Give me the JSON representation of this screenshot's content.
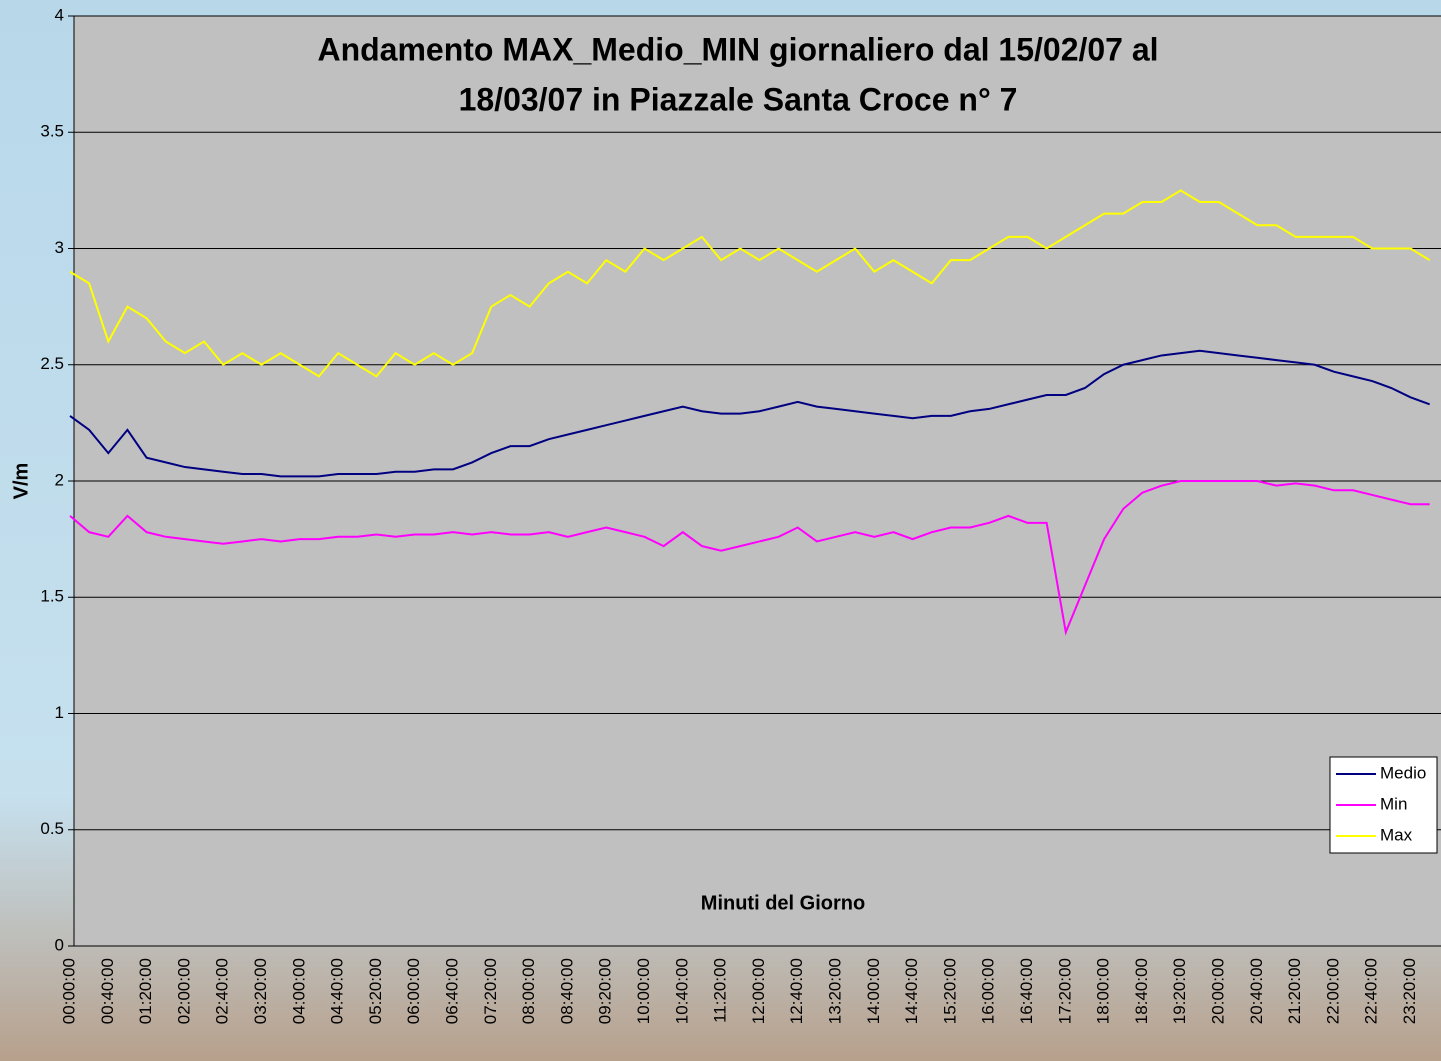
{
  "chart_data": {
    "type": "line",
    "title": [
      "Andamento MAX_Medio_MIN giornaliero dal 15/02/07 al",
      "18/03/07 in Piazzale Santa Croce n° 7"
    ],
    "x_label": "Minuti del Giorno",
    "y_label": "V/m",
    "categories": [
      "00:00:00",
      null,
      "00:40:00",
      null,
      "01:20:00",
      null,
      "02:00:00",
      null,
      "02:40:00",
      null,
      "03:20:00",
      null,
      "04:00:00",
      null,
      "04:40:00",
      null,
      "05:20:00",
      null,
      "06:00:00",
      null,
      "06:40:00",
      null,
      "07:20:00",
      null,
      "08:00:00",
      null,
      "08:40:00",
      null,
      "09:20:00",
      null,
      "10:00:00",
      null,
      "10:40:00",
      null,
      "11:20:00",
      null,
      "12:00:00",
      null,
      "12:40:00",
      null,
      "13:20:00",
      null,
      "14:00:00",
      null,
      "14:40:00",
      null,
      "15:20:00",
      null,
      "16:00:00",
      null,
      "16:40:00",
      null,
      "17:20:00",
      null,
      "18:00:00",
      null,
      "18:40:00",
      null,
      "19:20:00",
      null,
      "20:00:00",
      null,
      "20:40:00",
      null,
      "21:20:00",
      null,
      "22:00:00",
      null,
      "22:40:00",
      null,
      "23:20:00",
      null
    ],
    "series": [
      {
        "name": "Medio",
        "color": "#000080",
        "values": [
          2.28,
          2.22,
          2.12,
          2.22,
          2.1,
          2.08,
          2.06,
          2.05,
          2.04,
          2.03,
          2.03,
          2.02,
          2.02,
          2.02,
          2.03,
          2.03,
          2.03,
          2.04,
          2.04,
          2.05,
          2.05,
          2.08,
          2.12,
          2.15,
          2.15,
          2.18,
          2.2,
          2.22,
          2.24,
          2.26,
          2.28,
          2.3,
          2.32,
          2.3,
          2.29,
          2.29,
          2.3,
          2.32,
          2.34,
          2.32,
          2.31,
          2.3,
          2.29,
          2.28,
          2.27,
          2.28,
          2.28,
          2.3,
          2.31,
          2.33,
          2.35,
          2.37,
          2.37,
          2.4,
          2.46,
          2.5,
          2.52,
          2.54,
          2.55,
          2.56,
          2.55,
          2.54,
          2.53,
          2.52,
          2.51,
          2.5,
          2.47,
          2.45,
          2.43,
          2.4,
          2.36,
          2.33
        ]
      },
      {
        "name": "Min",
        "color": "#ff00ff",
        "values": [
          1.85,
          1.78,
          1.76,
          1.85,
          1.78,
          1.76,
          1.75,
          1.74,
          1.73,
          1.74,
          1.75,
          1.74,
          1.75,
          1.75,
          1.76,
          1.76,
          1.77,
          1.76,
          1.77,
          1.77,
          1.78,
          1.77,
          1.78,
          1.77,
          1.77,
          1.78,
          1.76,
          1.78,
          1.8,
          1.78,
          1.76,
          1.72,
          1.78,
          1.72,
          1.7,
          1.72,
          1.74,
          1.76,
          1.8,
          1.74,
          1.76,
          1.78,
          1.76,
          1.78,
          1.75,
          1.78,
          1.8,
          1.8,
          1.82,
          1.85,
          1.82,
          1.82,
          1.35,
          1.55,
          1.75,
          1.88,
          1.95,
          1.98,
          2.0,
          2.0,
          2.0,
          2.0,
          2.0,
          1.98,
          1.99,
          1.98,
          1.96,
          1.96,
          1.94,
          1.92,
          1.9,
          1.9
        ]
      },
      {
        "name": "Max",
        "color": "#ffff00",
        "values": [
          2.9,
          2.85,
          2.6,
          2.75,
          2.7,
          2.6,
          2.55,
          2.6,
          2.5,
          2.55,
          2.5,
          2.55,
          2.5,
          2.45,
          2.55,
          2.5,
          2.45,
          2.55,
          2.5,
          2.55,
          2.5,
          2.55,
          2.75,
          2.8,
          2.75,
          2.85,
          2.9,
          2.85,
          2.95,
          2.9,
          3.0,
          2.95,
          3.0,
          3.05,
          2.95,
          3.0,
          2.95,
          3.0,
          2.95,
          2.9,
          2.95,
          3.0,
          2.9,
          2.95,
          2.9,
          2.85,
          2.95,
          2.95,
          3.0,
          3.05,
          3.05,
          3.0,
          3.05,
          3.1,
          3.15,
          3.15,
          3.2,
          3.2,
          3.25,
          3.2,
          3.2,
          3.15,
          3.1,
          3.1,
          3.05,
          3.05,
          3.05,
          3.05,
          3.0,
          3.0,
          3.0,
          2.95
        ]
      }
    ],
    "ylim": [
      0,
      4
    ],
    "yticks": [
      0,
      0.5,
      1,
      1.5,
      2,
      2.5,
      3,
      3.5,
      4
    ],
    "grid": true,
    "legend": "right",
    "plot_color": "#c0c0c0"
  }
}
